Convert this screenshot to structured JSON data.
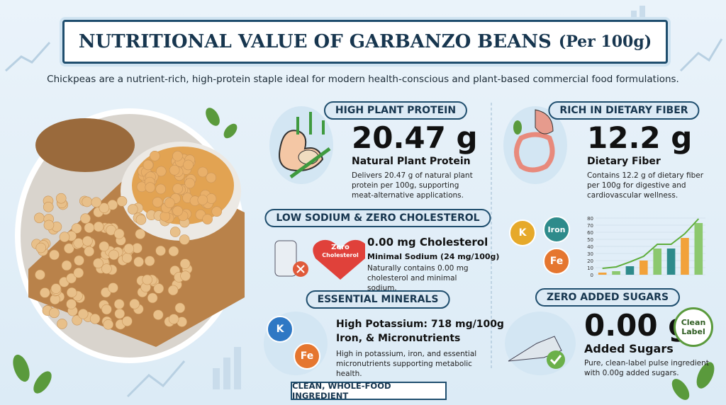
{
  "header": {
    "title": "NUTRITIONAL VALUE OF GARBANZO BEANS",
    "title_suffix": "(Per 100g)",
    "subtitle": "Chickpeas are a nutrient-rich, high-protein staple ideal for modern health-conscious and plant-based commercial food formulations."
  },
  "protein": {
    "heading": "HIGH PLANT PROTEIN",
    "value": "20.47 g",
    "label": "Natural Plant Protein",
    "description": "Delivers 20.47 g of natural plant protein per 100g, supporting meat-alternative applications."
  },
  "fiber": {
    "heading": "RICH IN DIETARY FIBER",
    "value": "12.2 g",
    "label": "Dietary Fiber",
    "description": "Contains 12.2 g of dietary fiber per 100g for digestive and cardiovascular wellness."
  },
  "sodium": {
    "heading": "LOW SODIUM & ZERO CHOLESTEROL",
    "badge": [
      "Zero",
      "Cholesterol"
    ],
    "value": "0.00 mg Cholesterol",
    "label": "Minimal Sodium (24 mg/100g)",
    "description": "Naturally contains 0.00 mg cholesterol and minimal sodium."
  },
  "minerals": {
    "heading": "ESSENTIAL MINERALS",
    "icons": [
      "K",
      "Fe"
    ],
    "value": "High Potassium: 718 mg/100g",
    "label": "Iron, & Micronutrients",
    "description": "High in potassium, iron, and essential micronutrients supporting metabolic health."
  },
  "mineral_icons": [
    "K",
    "Iron",
    "Fe"
  ],
  "mini_chart": {
    "type": "bar",
    "ylim": [
      0,
      80
    ],
    "yticks": [
      0,
      10,
      20,
      30,
      40,
      50,
      60,
      70,
      80
    ],
    "values": [
      3,
      5,
      12,
      20,
      37,
      37,
      52,
      73
    ],
    "colors": [
      "#f2a23a",
      "#8cc86e",
      "#2e8b8b"
    ]
  },
  "sugars": {
    "heading": "ZERO ADDED SUGARS",
    "value": "0.00 g",
    "label": "Added Sugars",
    "badge": "Clean Label",
    "description": "Pure, clean-label pulse ingredient with 0.00g added sugars."
  },
  "footer": "CLEAN, WHOLE-FOOD INGREDIENT"
}
